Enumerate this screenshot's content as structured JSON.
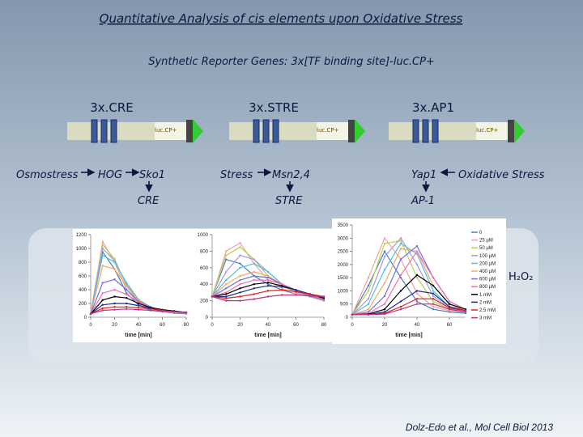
{
  "header": {
    "title": "Quantitative Analysis of cis elements upon Oxidative Stress",
    "subtitle": "Synthetic Reporter Genes: 3x[TF binding site]-luc.CP+"
  },
  "constructs": [
    {
      "name": "3x.CRE",
      "gene": "luc.CP+"
    },
    {
      "name": "3x.STRE",
      "gene": "luc.CP+"
    },
    {
      "name": "3x.AP1",
      "gene": "luc.CP+"
    }
  ],
  "pathways": [
    [
      "Osmostress",
      "HOG",
      "Sko1",
      "CRE"
    ],
    [
      "Stress",
      "Msn2,4",
      "STRE"
    ],
    [
      "Yap1",
      "Oxidative Stress",
      "AP-1"
    ]
  ],
  "annotation": "H₂O₂",
  "citation": "Dolz-Edo et al., Mol Cell Biol 2013",
  "chart_data": [
    {
      "type": "line",
      "xlabel": "time [min]",
      "x": [
        0,
        10,
        20,
        30,
        40,
        50,
        60,
        70,
        80
      ],
      "xlim": [
        0,
        80
      ],
      "xticks": [
        0,
        20,
        40,
        60,
        80
      ],
      "ylim": [
        0,
        1200
      ],
      "yticks": [
        0,
        200,
        400,
        600,
        800,
        1000,
        1200
      ],
      "series": [
        {
          "color": "#4a7ebb",
          "values": [
            50,
            950,
            700,
            350,
            180,
            100,
            80,
            60,
            50
          ]
        },
        {
          "color": "#f4a0a0",
          "values": [
            50,
            1100,
            800,
            400,
            200,
            120,
            90,
            70,
            60
          ]
        },
        {
          "color": "#b8d050",
          "values": [
            50,
            1050,
            850,
            450,
            220,
            130,
            90,
            70,
            60
          ]
        },
        {
          "color": "#a898e0",
          "values": [
            50,
            1000,
            820,
            480,
            250,
            140,
            100,
            70,
            60
          ]
        },
        {
          "color": "#50c0e0",
          "values": [
            50,
            900,
            800,
            500,
            260,
            150,
            100,
            80,
            60
          ]
        },
        {
          "color": "#f8a860",
          "values": [
            50,
            750,
            700,
            450,
            250,
            150,
            100,
            80,
            60
          ]
        },
        {
          "color": "#7070e8",
          "values": [
            50,
            500,
            550,
            400,
            230,
            150,
            100,
            80,
            60
          ]
        },
        {
          "color": "#f070b8",
          "values": [
            50,
            350,
            400,
            330,
            220,
            140,
            100,
            80,
            60
          ]
        },
        {
          "color": "#000000",
          "values": [
            50,
            250,
            300,
            280,
            200,
            140,
            110,
            90,
            70
          ]
        },
        {
          "color": "#1a2a90",
          "values": [
            50,
            180,
            200,
            200,
            170,
            130,
            100,
            80,
            70
          ]
        },
        {
          "color": "#e02020",
          "values": [
            50,
            130,
            150,
            150,
            140,
            120,
            100,
            80,
            70
          ]
        },
        {
          "color": "#c03080",
          "values": [
            50,
            100,
            110,
            120,
            110,
            100,
            90,
            80,
            70
          ]
        }
      ]
    },
    {
      "type": "line",
      "xlabel": "time [min]",
      "x": [
        0,
        10,
        20,
        30,
        40,
        50,
        60,
        70,
        80
      ],
      "xlim": [
        0,
        80
      ],
      "xticks": [
        0,
        20,
        40,
        60,
        80
      ],
      "ylim": [
        0,
        1000
      ],
      "yticks": [
        0,
        200,
        400,
        600,
        800,
        1000
      ],
      "series": [
        {
          "color": "#4a7ebb",
          "values": [
            250,
            700,
            650,
            500,
            400,
            330,
            280,
            250,
            200
          ]
        },
        {
          "color": "#f4a0a0",
          "values": [
            250,
            800,
            900,
            650,
            450,
            350,
            280,
            250,
            200
          ]
        },
        {
          "color": "#b8d050",
          "values": [
            250,
            750,
            850,
            700,
            500,
            380,
            300,
            250,
            200
          ]
        },
        {
          "color": "#a898e0",
          "values": [
            250,
            550,
            750,
            700,
            550,
            400,
            300,
            250,
            200
          ]
        },
        {
          "color": "#50c0e0",
          "values": [
            250,
            450,
            600,
            650,
            550,
            400,
            320,
            250,
            200
          ]
        },
        {
          "color": "#f8a860",
          "values": [
            250,
            400,
            500,
            550,
            500,
            400,
            320,
            260,
            200
          ]
        },
        {
          "color": "#7070e8",
          "values": [
            250,
            350,
            450,
            500,
            480,
            400,
            330,
            260,
            210
          ]
        },
        {
          "color": "#f070b8",
          "values": [
            250,
            300,
            400,
            450,
            450,
            400,
            330,
            270,
            220
          ]
        },
        {
          "color": "#000000",
          "values": [
            250,
            280,
            350,
            400,
            420,
            380,
            330,
            280,
            230
          ]
        },
        {
          "color": "#1a2a90",
          "values": [
            250,
            250,
            300,
            350,
            380,
            370,
            330,
            280,
            240
          ]
        },
        {
          "color": "#e02020",
          "values": [
            250,
            230,
            250,
            280,
            320,
            330,
            310,
            280,
            250
          ]
        },
        {
          "color": "#c03080",
          "values": [
            250,
            200,
            200,
            220,
            250,
            270,
            270,
            260,
            250
          ]
        }
      ]
    },
    {
      "type": "line",
      "xlabel": "time [min]",
      "x": [
        0,
        10,
        20,
        30,
        40,
        50,
        60,
        70
      ],
      "xlim": [
        0,
        70
      ],
      "xticks": [
        0,
        20,
        40,
        60
      ],
      "ylim": [
        0,
        3500
      ],
      "yticks": [
        0,
        500,
        1000,
        1500,
        2000,
        2500,
        3000,
        3500
      ],
      "series": [
        {
          "name": "0",
          "color": "#4a7ebb",
          "values": [
            100,
            1200,
            2500,
            1500,
            600,
            300,
            200,
            150
          ]
        },
        {
          "name": "25 µM",
          "color": "#f4a0a0",
          "values": [
            100,
            1500,
            3000,
            2200,
            900,
            400,
            250,
            200
          ]
        },
        {
          "name": "50 µM",
          "color": "#b8d050",
          "values": [
            100,
            1000,
            2800,
            2900,
            1500,
            600,
            300,
            200
          ]
        },
        {
          "name": "100 µM",
          "color": "#a898e0",
          "values": [
            100,
            700,
            2300,
            3000,
            2000,
            800,
            350,
            200
          ]
        },
        {
          "name": "200 µM",
          "color": "#50c0e0",
          "values": [
            100,
            500,
            1800,
            2800,
            2400,
            1000,
            400,
            250
          ]
        },
        {
          "name": "400 µM",
          "color": "#f8a860",
          "values": [
            100,
            300,
            1300,
            2600,
            2500,
            1200,
            500,
            250
          ]
        },
        {
          "name": "600 µM",
          "color": "#7070e8",
          "values": [
            100,
            200,
            800,
            2200,
            2700,
            1500,
            600,
            300
          ]
        },
        {
          "name": "800 µM",
          "color": "#f070b8",
          "values": [
            100,
            150,
            500,
            1600,
            2500,
            1500,
            600,
            300
          ]
        },
        {
          "name": "1 mM",
          "color": "#000000",
          "values": [
            100,
            120,
            300,
            1000,
            1600,
            1200,
            500,
            300
          ]
        },
        {
          "name": "2 mM",
          "color": "#1a2a90",
          "values": [
            100,
            100,
            200,
            600,
            1000,
            900,
            400,
            250
          ]
        },
        {
          "name": "2.5 mM",
          "color": "#e02020",
          "values": [
            100,
            100,
            150,
            400,
            700,
            700,
            350,
            250
          ]
        },
        {
          "name": "3 mM",
          "color": "#c03080",
          "values": [
            100,
            100,
            120,
            300,
            500,
            500,
            300,
            200
          ]
        }
      ]
    }
  ]
}
